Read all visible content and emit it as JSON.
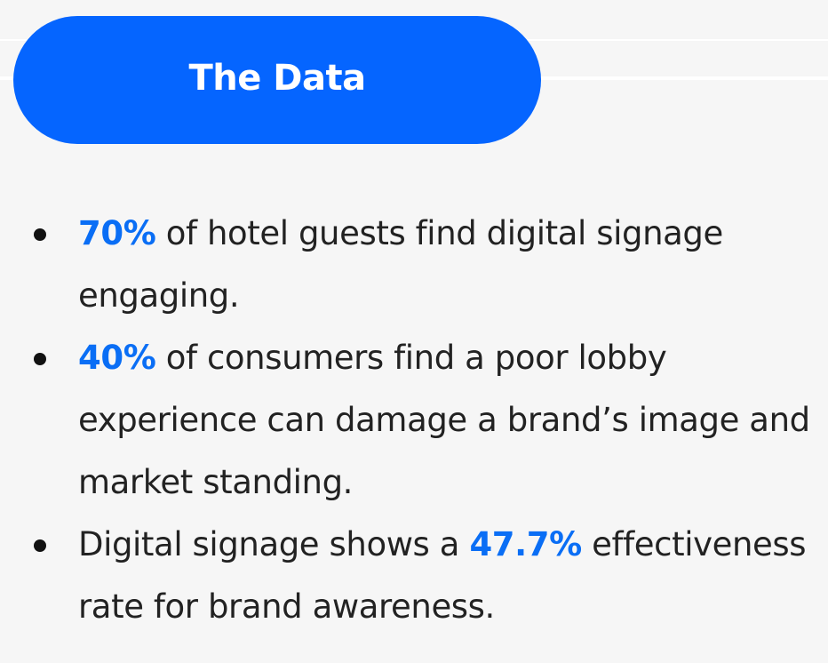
{
  "header": {
    "title": "The Data"
  },
  "colors": {
    "accent": "#0565ff",
    "highlight": "#0a6ef5",
    "background": "#f6f6f6",
    "text": "#222222"
  },
  "items": [
    {
      "before": "",
      "highlight": "70%",
      "after": " of hotel guests find digital signage engaging."
    },
    {
      "before": "",
      "highlight": "40%",
      "after": " of consumers find a poor lobby experience can damage a brand’s image and market standing."
    },
    {
      "before": "Digital signage shows a ",
      "highlight": "47.7%",
      "after": " effectiveness rate for brand awareness."
    }
  ]
}
